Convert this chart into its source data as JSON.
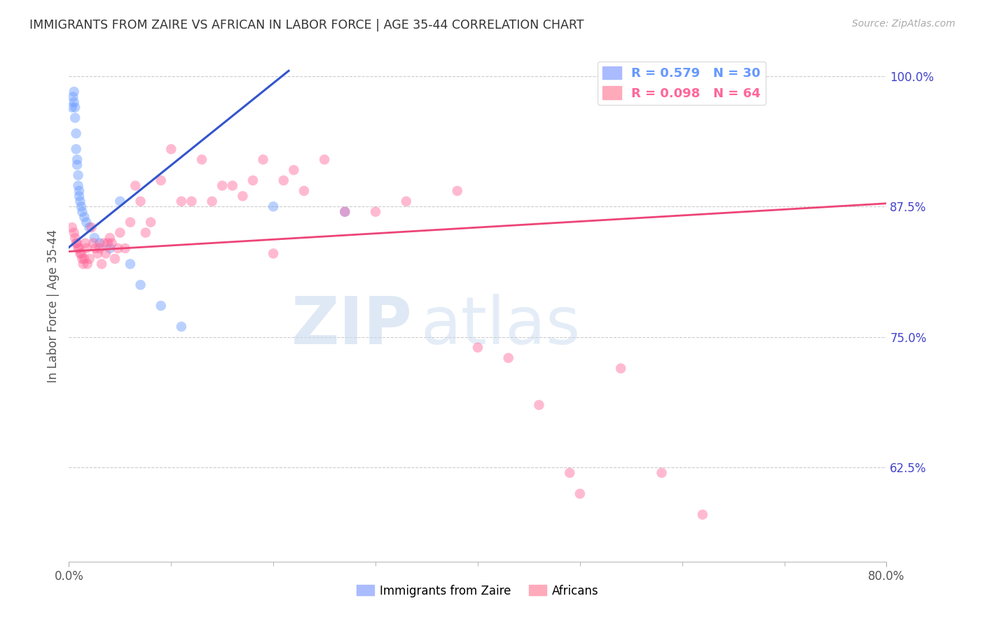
{
  "title": "IMMIGRANTS FROM ZAIRE VS AFRICAN IN LABOR FORCE | AGE 35-44 CORRELATION CHART",
  "source": "Source: ZipAtlas.com",
  "ylabel": "In Labor Force | Age 35-44",
  "legend_entries": [
    {
      "label": "R = 0.579   N = 30",
      "color": "#6699ff"
    },
    {
      "label": "R = 0.098   N = 64",
      "color": "#ff6699"
    }
  ],
  "legend_label1": "Immigrants from Zaire",
  "legend_label2": "Africans",
  "xlim": [
    0.0,
    0.8
  ],
  "ylim": [
    0.535,
    1.025
  ],
  "right_yticks": [
    1.0,
    0.875,
    0.75,
    0.625
  ],
  "right_yticklabels": [
    "100.0%",
    "87.5%",
    "75.0%",
    "62.5%"
  ],
  "xticklabels_edge": [
    "0.0%",
    "80.0%"
  ],
  "blue_scatter_x": [
    0.003,
    0.004,
    0.005,
    0.005,
    0.006,
    0.006,
    0.007,
    0.007,
    0.008,
    0.008,
    0.009,
    0.009,
    0.01,
    0.01,
    0.011,
    0.012,
    0.013,
    0.015,
    0.017,
    0.02,
    0.025,
    0.03,
    0.04,
    0.05,
    0.06,
    0.07,
    0.09,
    0.11,
    0.2,
    0.27
  ],
  "blue_scatter_y": [
    0.97,
    0.98,
    0.985,
    0.975,
    0.97,
    0.96,
    0.945,
    0.93,
    0.92,
    0.915,
    0.905,
    0.895,
    0.89,
    0.885,
    0.88,
    0.875,
    0.87,
    0.865,
    0.86,
    0.855,
    0.845,
    0.84,
    0.835,
    0.88,
    0.82,
    0.8,
    0.78,
    0.76,
    0.875,
    0.87
  ],
  "pink_scatter_x": [
    0.003,
    0.005,
    0.006,
    0.007,
    0.008,
    0.009,
    0.01,
    0.011,
    0.012,
    0.013,
    0.014,
    0.015,
    0.016,
    0.017,
    0.018,
    0.02,
    0.022,
    0.024,
    0.026,
    0.028,
    0.03,
    0.032,
    0.034,
    0.036,
    0.038,
    0.04,
    0.042,
    0.045,
    0.048,
    0.05,
    0.055,
    0.06,
    0.065,
    0.07,
    0.075,
    0.08,
    0.09,
    0.1,
    0.11,
    0.12,
    0.13,
    0.14,
    0.15,
    0.16,
    0.17,
    0.18,
    0.19,
    0.2,
    0.21,
    0.22,
    0.23,
    0.25,
    0.27,
    0.3,
    0.33,
    0.38,
    0.4,
    0.43,
    0.46,
    0.49,
    0.5,
    0.54,
    0.58,
    0.62
  ],
  "pink_scatter_y": [
    0.855,
    0.85,
    0.845,
    0.84,
    0.84,
    0.835,
    0.835,
    0.83,
    0.83,
    0.825,
    0.82,
    0.825,
    0.84,
    0.835,
    0.82,
    0.825,
    0.855,
    0.84,
    0.835,
    0.83,
    0.835,
    0.82,
    0.84,
    0.83,
    0.84,
    0.845,
    0.84,
    0.825,
    0.835,
    0.85,
    0.835,
    0.86,
    0.895,
    0.88,
    0.85,
    0.86,
    0.9,
    0.93,
    0.88,
    0.88,
    0.92,
    0.88,
    0.895,
    0.895,
    0.885,
    0.9,
    0.92,
    0.83,
    0.9,
    0.91,
    0.89,
    0.92,
    0.87,
    0.87,
    0.88,
    0.89,
    0.74,
    0.73,
    0.685,
    0.62,
    0.6,
    0.72,
    0.62,
    0.58
  ],
  "blue_line_x": [
    0.0,
    0.215
  ],
  "blue_line_y": [
    0.836,
    1.005
  ],
  "pink_line_x": [
    0.0,
    0.8
  ],
  "pink_line_y": [
    0.832,
    0.878
  ],
  "dot_size": 110,
  "dot_alpha": 0.45,
  "grid_color": "#cccccc",
  "title_color": "#333333",
  "axis_label_color": "#555555",
  "right_axis_color": "#4444cc",
  "watermark_text": "ZIP",
  "watermark_text2": "atlas",
  "background_color": "#ffffff"
}
